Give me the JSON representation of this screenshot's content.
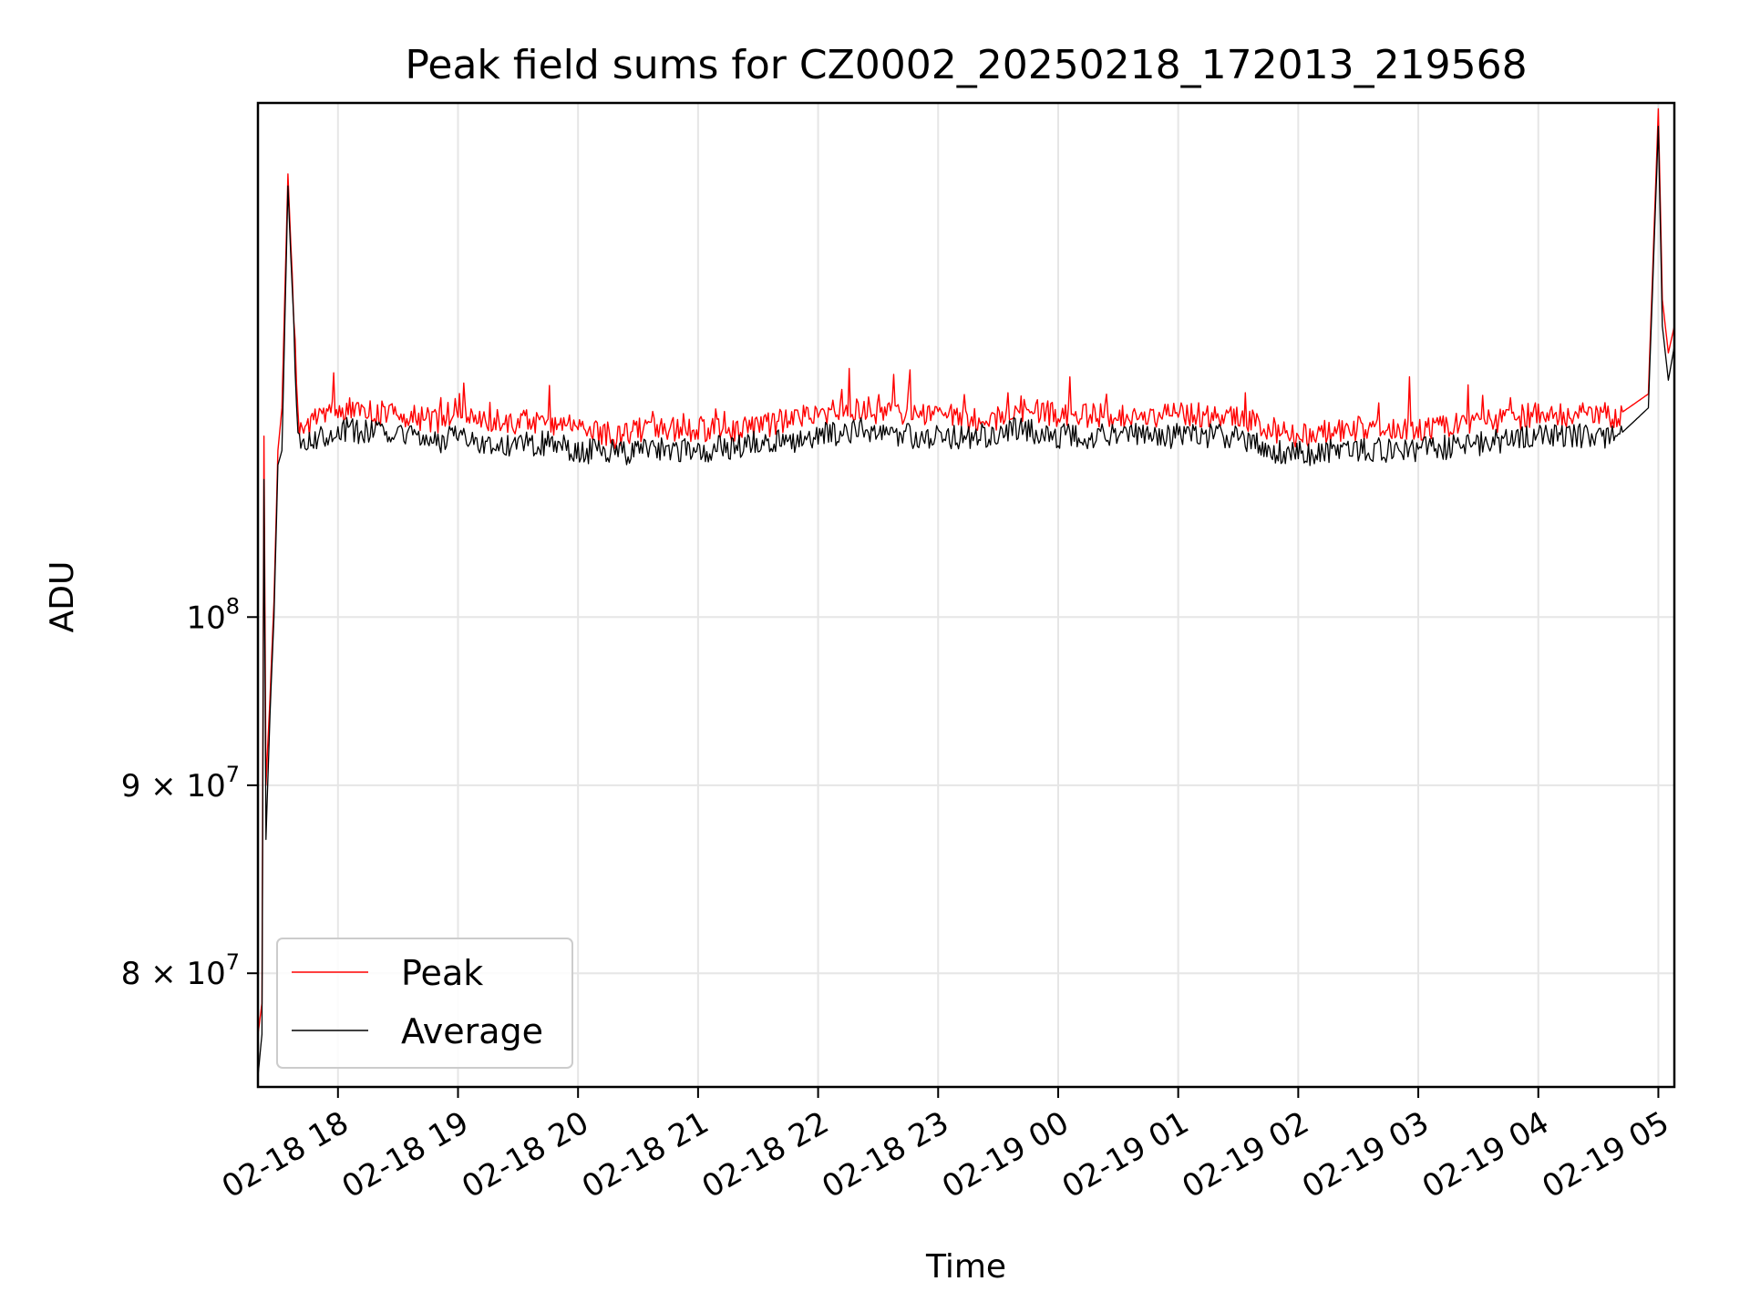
{
  "chart_data": {
    "type": "line",
    "title": "Peak field sums for CZ0002_20250218_172013_219568",
    "xlabel": "Time",
    "ylabel": "ADU",
    "x_scale": "time",
    "y_scale": "log",
    "xlim": [
      "2025-02-18 17:20",
      "2025-02-19 05:08"
    ],
    "ylim": [
      74500000,
      138000000
    ],
    "grid": true,
    "legend_position": "lower-left",
    "x_ticks": [
      {
        "value": "2025-02-18 18:00",
        "label": "02-18 18"
      },
      {
        "value": "2025-02-18 19:00",
        "label": "02-18 19"
      },
      {
        "value": "2025-02-18 20:00",
        "label": "02-18 20"
      },
      {
        "value": "2025-02-18 21:00",
        "label": "02-18 21"
      },
      {
        "value": "2025-02-18 22:00",
        "label": "02-18 22"
      },
      {
        "value": "2025-02-18 23:00",
        "label": "02-18 23"
      },
      {
        "value": "2025-02-19 00:00",
        "label": "02-19 00"
      },
      {
        "value": "2025-02-19 01:00",
        "label": "02-19 01"
      },
      {
        "value": "2025-02-19 02:00",
        "label": "02-19 02"
      },
      {
        "value": "2025-02-19 03:00",
        "label": "02-19 03"
      },
      {
        "value": "2025-02-19 04:00",
        "label": "02-19 04"
      },
      {
        "value": "2025-02-19 05:00",
        "label": "02-19 05"
      }
    ],
    "y_ticks": [
      {
        "value": 80000000,
        "base": "8 × 10",
        "exp": "7"
      },
      {
        "value": 90000000,
        "base": "9 × 10",
        "exp": "7"
      },
      {
        "value": 100000000,
        "base": "10",
        "exp": "8"
      }
    ],
    "series": [
      {
        "name": "Peak",
        "color": "#ff0000",
        "x": [
          "2025-02-18 17:20",
          "2025-02-18 17:22",
          "2025-02-18 17:23",
          "2025-02-18 17:24",
          "2025-02-18 17:26",
          "2025-02-18 17:28",
          "2025-02-18 17:30",
          "2025-02-18 17:32",
          "2025-02-18 17:35",
          "2025-02-18 17:40",
          "2025-02-18 17:45",
          "2025-02-18 17:50",
          "2025-02-18 18:00",
          "2025-02-18 18:30",
          "2025-02-18 18:50",
          "2025-02-18 19:00",
          "2025-02-18 19:13",
          "2025-02-18 19:30",
          "2025-02-18 19:45",
          "2025-02-18 20:00",
          "2025-02-18 20:20",
          "2025-02-18 20:30",
          "2025-02-18 21:00",
          "2025-02-18 21:30",
          "2025-02-18 21:38",
          "2025-02-18 22:00",
          "2025-02-18 22:20",
          "2025-02-18 22:40",
          "2025-02-18 23:00",
          "2025-02-18 23:24",
          "2025-02-18 23:40",
          "2025-02-19 00:00",
          "2025-02-19 00:30",
          "2025-02-19 01:00",
          "2025-02-19 01:30",
          "2025-02-19 01:45",
          "2025-02-19 02:00",
          "2025-02-19 02:30",
          "2025-02-19 03:00",
          "2025-02-19 03:30",
          "2025-02-19 04:00",
          "2025-02-19 04:20",
          "2025-02-19 04:40",
          "2025-02-19 04:55",
          "2025-02-19 05:00",
          "2025-02-19 05:02",
          "2025-02-19 05:05",
          "2025-02-19 05:08"
        ],
        "y": [
          77000000,
          78500000,
          112000000,
          90000000,
          95000000,
          101000000,
          111000000,
          114000000,
          132000000,
          113000000,
          112500000,
          113500000,
          114000000,
          113500000,
          113000000,
          114000000,
          113000000,
          113000000,
          113000000,
          112500000,
          112000000,
          112500000,
          112500000,
          112500000,
          113000000,
          113500000,
          114000000,
          113500000,
          113500000,
          113000000,
          114000000,
          113500000,
          113500000,
          113500000,
          113500000,
          112500000,
          112000000,
          112500000,
          112500000,
          113000000,
          113500000,
          113500000,
          113500000,
          115000000,
          137500000,
          122000000,
          118000000,
          120000000
        ]
      },
      {
        "name": "Average",
        "color": "#000000",
        "x": [
          "2025-02-18 17:20",
          "2025-02-18 17:22",
          "2025-02-18 17:23",
          "2025-02-18 17:24",
          "2025-02-18 17:26",
          "2025-02-18 17:28",
          "2025-02-18 17:30",
          "2025-02-18 17:32",
          "2025-02-18 17:35",
          "2025-02-18 17:40",
          "2025-02-18 17:45",
          "2025-02-18 17:50",
          "2025-02-18 18:00",
          "2025-02-18 18:30",
          "2025-02-18 18:50",
          "2025-02-18 19:00",
          "2025-02-18 19:13",
          "2025-02-18 19:30",
          "2025-02-18 19:45",
          "2025-02-18 20:00",
          "2025-02-18 20:20",
          "2025-02-18 20:30",
          "2025-02-18 21:00",
          "2025-02-18 21:30",
          "2025-02-18 21:38",
          "2025-02-18 22:00",
          "2025-02-18 22:20",
          "2025-02-18 22:40",
          "2025-02-18 23:00",
          "2025-02-18 23:24",
          "2025-02-18 23:40",
          "2025-02-19 00:00",
          "2025-02-19 00:30",
          "2025-02-19 01:00",
          "2025-02-19 01:30",
          "2025-02-19 01:45",
          "2025-02-19 02:00",
          "2025-02-19 02:30",
          "2025-02-19 03:00",
          "2025-02-19 03:30",
          "2025-02-19 04:00",
          "2025-02-19 04:20",
          "2025-02-19 04:40",
          "2025-02-19 04:55",
          "2025-02-19 05:00",
          "2025-02-19 05:02",
          "2025-02-19 05:05",
          "2025-02-19 05:08"
        ],
        "y": [
          75000000,
          77000000,
          109000000,
          87000000,
          94000000,
          100000000,
          110000000,
          111000000,
          131000000,
          112000000,
          111500000,
          112000000,
          112500000,
          112000000,
          111500000,
          112500000,
          111500000,
          111500000,
          111500000,
          111000000,
          110800000,
          111000000,
          111000000,
          111500000,
          111500000,
          112000000,
          112500000,
          112000000,
          112000000,
          112000000,
          112500000,
          112000000,
          112000000,
          112000000,
          112000000,
          111000000,
          110800000,
          111000000,
          111000000,
          111500000,
          112000000,
          112000000,
          112000000,
          114000000,
          136000000,
          120000000,
          116000000,
          118500000
        ]
      }
    ]
  }
}
